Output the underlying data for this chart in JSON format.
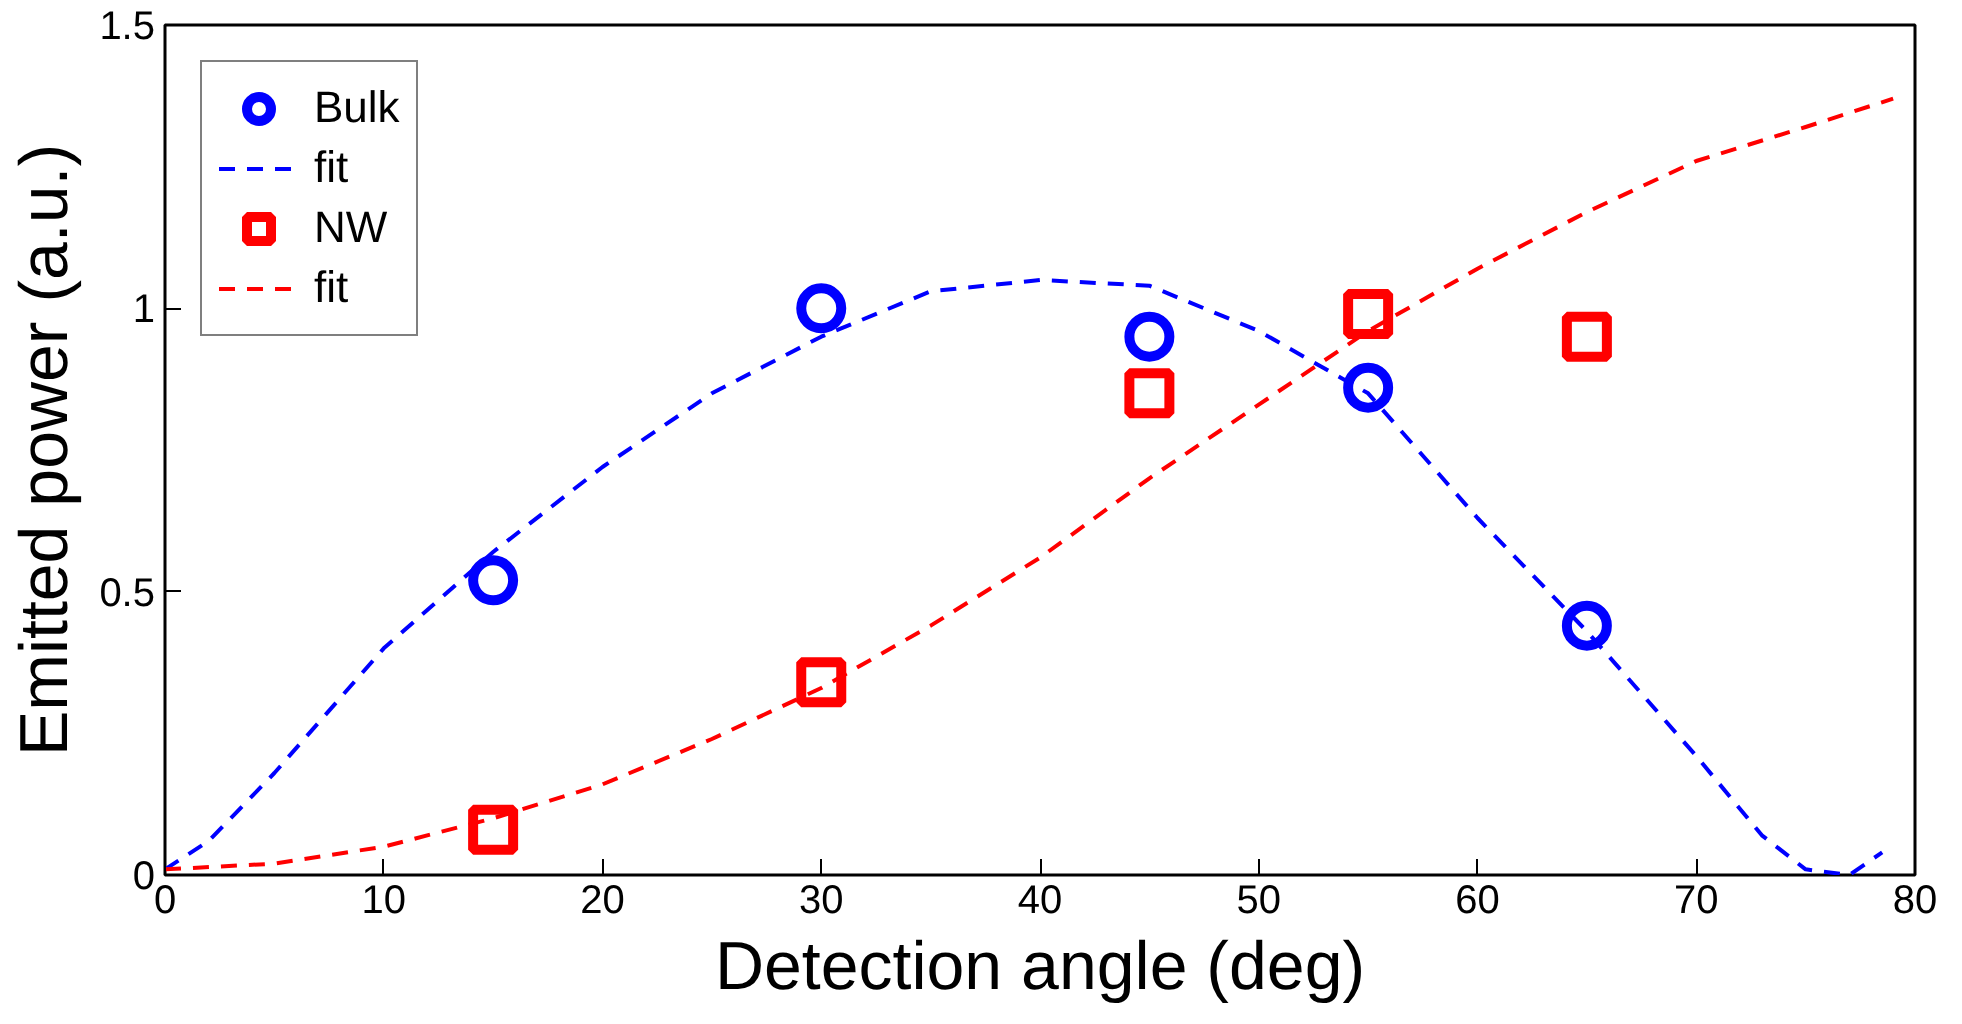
{
  "chart_data": {
    "type": "scatter",
    "xlabel": "Detection angle (deg)",
    "ylabel": "Emitted power (a.u.)",
    "xlim": [
      0,
      80
    ],
    "ylim": [
      0,
      1.5
    ],
    "xticks": [
      0,
      10,
      20,
      30,
      40,
      50,
      60,
      70,
      80
    ],
    "yticks": [
      0,
      0.5,
      1,
      1.5
    ],
    "grid": false,
    "legend": "top left",
    "series": [
      {
        "name": "Bulk",
        "marker": "circle",
        "color": "#0000ff",
        "x": [
          15,
          30,
          45,
          55,
          65
        ],
        "values": [
          0.52,
          1.0,
          0.95,
          0.86,
          0.44
        ]
      },
      {
        "name": "fit",
        "type": "line",
        "line_style": "dashed",
        "marker": "none",
        "color": "#0000ff",
        "x": [
          0,
          2,
          5,
          10,
          15,
          20,
          25,
          30,
          35,
          40,
          45,
          50,
          55,
          60,
          65,
          70,
          73,
          75,
          77,
          78.5
        ],
        "values": [
          0.01,
          0.06,
          0.18,
          0.4,
          0.57,
          0.72,
          0.85,
          0.95,
          1.03,
          1.05,
          1.04,
          0.96,
          0.85,
          0.63,
          0.43,
          0.21,
          0.07,
          0.01,
          0.0,
          0.04
        ]
      },
      {
        "name": "NW",
        "marker": "square",
        "color": "#ff0000",
        "x": [
          15,
          30,
          45,
          55,
          65
        ],
        "values": [
          0.08,
          0.34,
          0.85,
          0.99,
          0.95
        ]
      },
      {
        "name": "fit",
        "type": "line",
        "line_style": "dashed",
        "marker": "none",
        "color": "#ff0000",
        "x": [
          0,
          5,
          10,
          15,
          20,
          25,
          30,
          35,
          40,
          45,
          50,
          55,
          60,
          65,
          70,
          75,
          79
        ],
        "values": [
          0.01,
          0.02,
          0.05,
          0.1,
          0.16,
          0.24,
          0.33,
          0.44,
          0.56,
          0.7,
          0.83,
          0.96,
          1.07,
          1.17,
          1.26,
          1.32,
          1.37
        ]
      }
    ]
  }
}
